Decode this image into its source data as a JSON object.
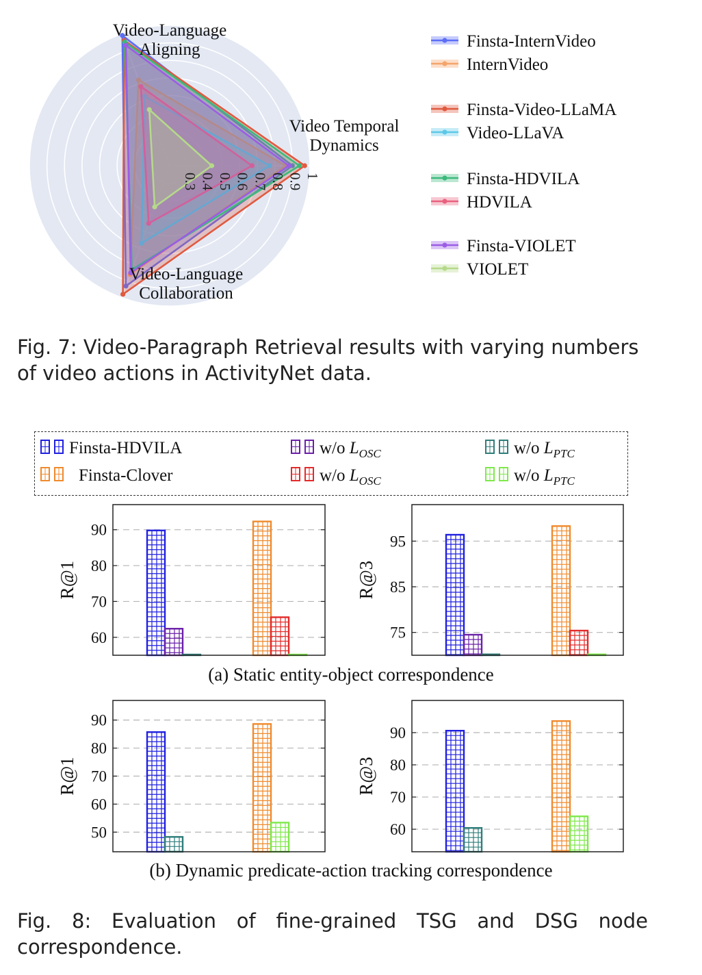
{
  "figure7": {
    "caption": "Fig. 7: Video-Paragraph Retrieval results with varying numbers of video actions in ActivityNet data.",
    "chart_data": {
      "type": "radar",
      "axes": [
        {
          "name": "Video-Language Aligning",
          "lines": [
            "Video-Language",
            "Aligning"
          ]
        },
        {
          "name": "Video Temporal Dynamics",
          "lines": [
            "Video Temporal",
            "Dynamics"
          ]
        },
        {
          "name": "Video-Language Collaboration",
          "lines": [
            "Video-Language",
            "Collaboration"
          ]
        }
      ],
      "radial_ticks": [
        "0.3",
        "0.4",
        "0.5",
        "0.6",
        "0.7",
        "0.8",
        "0.9",
        "1"
      ],
      "range": [
        0.2,
        1.0
      ],
      "series": [
        {
          "name": "Finsta-InternVideo",
          "color": "#5b6ef5",
          "values": [
            0.99,
            0.9,
            0.93
          ]
        },
        {
          "name": "InternVideo",
          "color": "#f5a46a",
          "values": [
            0.72,
            0.86,
            0.86
          ]
        },
        {
          "name": "Finsta-Video-LLaMA",
          "color": "#e05a3f",
          "values": [
            0.96,
            0.97,
            0.98
          ]
        },
        {
          "name": "Video-LLaVA",
          "color": "#5cc8e8",
          "values": [
            0.62,
            0.77,
            0.67
          ]
        },
        {
          "name": "Finsta-HDVILA",
          "color": "#3cb97c",
          "values": [
            0.95,
            0.94,
            0.83
          ]
        },
        {
          "name": "HDVILA",
          "color": "#e8617f",
          "values": [
            0.68,
            0.67,
            0.55
          ]
        },
        {
          "name": "Finsta-VIOLET",
          "color": "#9b5de5",
          "values": [
            0.93,
            0.88,
            0.85
          ]
        },
        {
          "name": "VIOLET",
          "color": "#b5d98a",
          "values": [
            0.54,
            0.44,
            0.45
          ]
        }
      ]
    }
  },
  "figure8": {
    "caption_line1": "Fig. 8: Evaluation of fine-grained TSG and DSG node",
    "caption_line2": "correspondence.",
    "legend": [
      {
        "name": "Finsta-HDVILA",
        "color": "#1f1fe0",
        "label": "Finsta-HDVILA"
      },
      {
        "name": "w/o L_OSC (HDVILA)",
        "color": "#6a1fa8",
        "label": "w/o ",
        "math": "L",
        "sub": "OSC"
      },
      {
        "name": "w/o L_PTC (HDVILA)",
        "color": "#2e7d7a",
        "label": "w/o ",
        "math": "L",
        "sub": "PTC"
      },
      {
        "name": "Finsta-Clover",
        "color": "#f08a2c",
        "label": "Finsta-Clover"
      },
      {
        "name": "w/o L_OSC (Clover)",
        "color": "#e32a2a",
        "label": "w/o ",
        "math": "L",
        "sub": "OSC"
      },
      {
        "name": "w/o L_PTC (Clover)",
        "color": "#7ee84a",
        "label": "w/o ",
        "math": "L",
        "sub": "PTC"
      }
    ],
    "subcaption_a": "(a) Static entity-object correspondence",
    "subcaption_b": "(b) Dynamic predicate-action tracking correspondence",
    "chart_data": [
      {
        "type": "bar",
        "ylabel": "R@1",
        "ylim": [
          55,
          97
        ],
        "yticks": [
          60,
          70,
          80,
          90
        ],
        "series": [
          {
            "color": "#1f1fe0",
            "value": 89.8
          },
          {
            "color": "#6a1fa8",
            "value": 62.4
          },
          {
            "color": "#2e7d7a",
            "value": 55.2
          },
          {
            "color": "#f08a2c",
            "value": 92.3
          },
          {
            "color": "#e32a2a",
            "value": 65.6
          },
          {
            "color": "#7ee84a",
            "value": 55.2
          }
        ]
      },
      {
        "type": "bar",
        "ylabel": "R@3",
        "ylim": [
          70,
          103
        ],
        "yticks": [
          75,
          85,
          95
        ],
        "series": [
          {
            "color": "#1f1fe0",
            "value": 96.4
          },
          {
            "color": "#6a1fa8",
            "value": 74.5
          },
          {
            "color": "#2e7d7a",
            "value": 70.2
          },
          {
            "color": "#f08a2c",
            "value": 98.3
          },
          {
            "color": "#e32a2a",
            "value": 75.4
          },
          {
            "color": "#7ee84a",
            "value": 70.2
          }
        ]
      },
      {
        "type": "bar",
        "ylabel": "R@1",
        "ylim": [
          43,
          97
        ],
        "yticks": [
          50,
          60,
          70,
          80,
          90
        ],
        "series": [
          {
            "color": "#1f1fe0",
            "value": 85.7
          },
          {
            "color": "#2e7d7a",
            "value": 48.3
          },
          {
            "color": "#f08a2c",
            "value": 88.6
          },
          {
            "color": "#7ee84a",
            "value": 53.4
          }
        ]
      },
      {
        "type": "bar",
        "ylabel": "R@3",
        "ylim": [
          53,
          100
        ],
        "yticks": [
          60,
          70,
          80,
          90
        ],
        "series": [
          {
            "color": "#1f1fe0",
            "value": 90.6
          },
          {
            "color": "#2e7d7a",
            "value": 60.4
          },
          {
            "color": "#f08a2c",
            "value": 93.6
          },
          {
            "color": "#7ee84a",
            "value": 64.0
          }
        ]
      }
    ]
  }
}
